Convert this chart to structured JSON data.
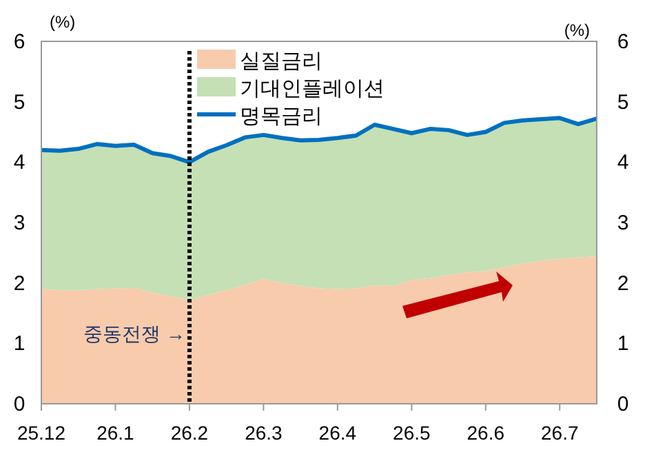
{
  "chart_data": {
    "type": "area",
    "stacked": true,
    "ylabel": "(%)",
    "y2label": "(%)",
    "categories": [
      "25.12",
      null,
      null,
      null,
      "26.1",
      null,
      null,
      null,
      "26.2",
      null,
      null,
      null,
      "26.3",
      null,
      null,
      null,
      "26.4",
      null,
      null,
      null,
      "26.5",
      null,
      null,
      null,
      "26.6",
      null,
      null,
      null,
      "26.7",
      null,
      null
    ],
    "series": [
      {
        "name": "실질금리",
        "type": "area",
        "color": "#f8cbad",
        "values": [
          1.9,
          1.88,
          1.88,
          1.9,
          1.91,
          1.92,
          1.84,
          1.78,
          1.72,
          1.8,
          1.88,
          1.97,
          2.07,
          2.0,
          1.95,
          1.91,
          1.9,
          1.91,
          1.96,
          1.95,
          2.05,
          2.08,
          2.13,
          2.18,
          2.2,
          2.26,
          2.32,
          2.37,
          2.4,
          2.42,
          2.44
        ]
      },
      {
        "name": "기대인플레이션",
        "type": "area",
        "color": "#c5e0b4",
        "values": [
          2.3,
          2.31,
          2.34,
          2.4,
          2.36,
          2.37,
          2.31,
          2.32,
          2.28,
          2.37,
          2.4,
          2.44,
          2.38,
          2.4,
          2.41,
          2.46,
          2.5,
          2.53,
          2.66,
          2.6,
          2.43,
          2.47,
          2.4,
          2.27,
          2.3,
          2.39,
          2.37,
          2.34,
          2.33,
          2.21,
          2.28
        ]
      },
      {
        "name": "명목금리",
        "type": "line",
        "color": "#0070c0",
        "values": [
          4.2,
          4.19,
          4.22,
          4.3,
          4.27,
          4.29,
          4.15,
          4.1,
          4.0,
          4.17,
          4.28,
          4.41,
          4.45,
          4.4,
          4.36,
          4.37,
          4.4,
          4.44,
          4.62,
          4.55,
          4.48,
          4.55,
          4.53,
          4.45,
          4.5,
          4.65,
          4.69,
          4.71,
          4.73,
          4.63,
          4.72
        ]
      }
    ],
    "ylim": [
      0,
      6
    ],
    "yticks": [
      0,
      1,
      2,
      3,
      4,
      5,
      6
    ],
    "y2lim": [
      0,
      6
    ],
    "y2ticks": [
      0,
      1,
      2,
      3,
      4,
      5,
      6
    ],
    "ref_lines": [
      {
        "axis": "x",
        "value": "26.2",
        "label": "중동전쟁 →",
        "color": "#000000",
        "line_style": "dotted"
      }
    ],
    "legend": "top",
    "grid": false
  }
}
